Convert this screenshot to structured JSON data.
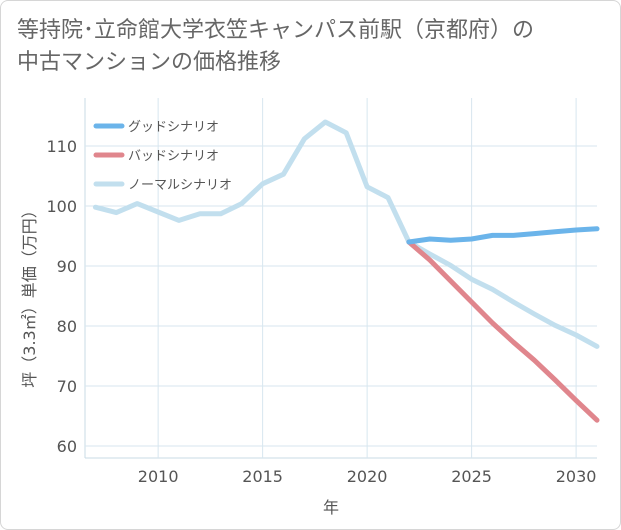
{
  "title_line1": "等持院･立命館大学衣笠キャンパス前駅（京都府）の",
  "title_line2": "中古マンションの価格推移",
  "chart_data": {
    "type": "line",
    "xlabel": "年",
    "ylabel": "坪（3.3㎡）単価（万円）",
    "xlim": [
      2006.5,
      2031
    ],
    "ylim": [
      58,
      118
    ],
    "x_ticks": [
      2010,
      2015,
      2020,
      2025,
      2030
    ],
    "y_ticks": [
      60,
      70,
      80,
      90,
      100,
      110
    ],
    "legend_position": "top-left",
    "series": [
      {
        "name": "グッドシナリオ",
        "color": "#6bb4ea",
        "x": [
          2022,
          2023,
          2024,
          2025,
          2026,
          2027,
          2028,
          2029,
          2030,
          2031
        ],
        "values": [
          94.0,
          94.5,
          94.3,
          94.5,
          95.1,
          95.1,
          95.4,
          95.7,
          96.0,
          96.2
        ]
      },
      {
        "name": "バッドシナリオ",
        "color": "#e0868d",
        "x": [
          2022,
          2023,
          2024,
          2025,
          2026,
          2027,
          2028,
          2029,
          2030,
          2031
        ],
        "values": [
          94.0,
          91.0,
          87.5,
          84.0,
          80.5,
          77.3,
          74.3,
          71.0,
          67.6,
          64.3
        ]
      },
      {
        "name": "ノーマルシナリオ",
        "color": "#c2dfee",
        "x": [
          2007,
          2008,
          2009,
          2010,
          2011,
          2012,
          2013,
          2014,
          2015,
          2016,
          2017,
          2018,
          2019,
          2020,
          2021,
          2022,
          2023,
          2024,
          2025,
          2026,
          2027,
          2028,
          2029,
          2030,
          2031
        ],
        "values": [
          99.8,
          98.9,
          100.4,
          99.0,
          97.6,
          98.7,
          98.7,
          100.4,
          103.7,
          105.3,
          111.2,
          114.0,
          112.2,
          103.2,
          101.4,
          94.0,
          92.0,
          90.1,
          87.8,
          86.1,
          84.0,
          82.0,
          80.1,
          78.5,
          76.6
        ]
      }
    ]
  }
}
